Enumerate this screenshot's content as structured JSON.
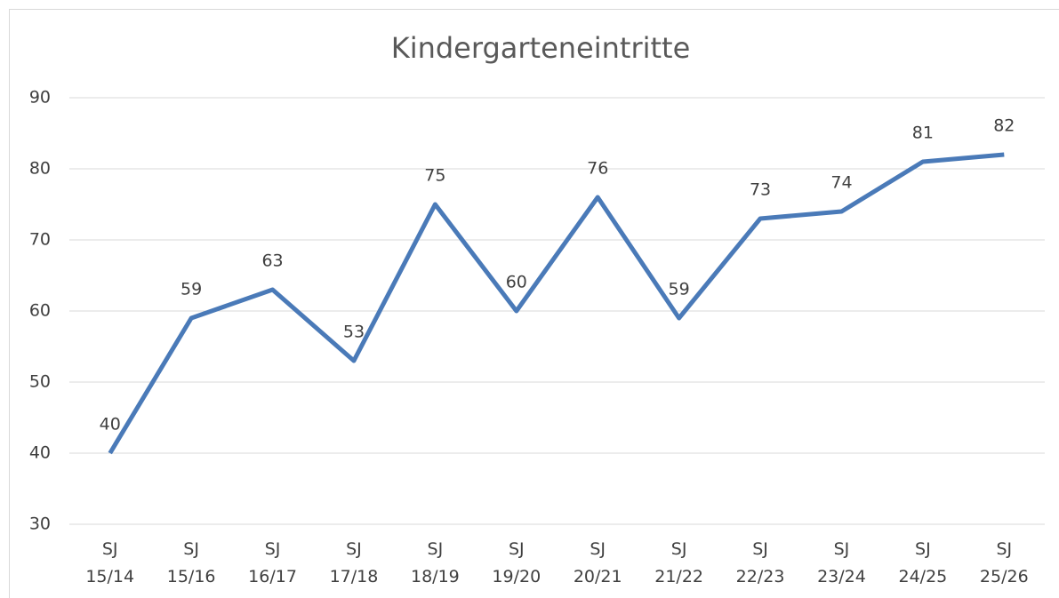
{
  "chart_data": {
    "type": "line",
    "title": "Kindergarteneintritte",
    "categories": [
      "SJ 15/14",
      "SJ 15/16",
      "SJ 16/17",
      "SJ 17/18",
      "SJ 18/19",
      "SJ 19/20",
      "SJ 20/21",
      "SJ 21/22",
      "SJ 22/23",
      "SJ 23/24",
      "SJ 24/25",
      "SJ 25/26"
    ],
    "values": [
      40,
      59,
      63,
      53,
      75,
      60,
      76,
      59,
      73,
      74,
      81,
      82
    ],
    "color": "#4a7ab8",
    "ylim": [
      30,
      90
    ],
    "yticks": [
      30,
      40,
      50,
      60,
      70,
      80,
      90
    ],
    "grid": true,
    "data_labels": true
  }
}
